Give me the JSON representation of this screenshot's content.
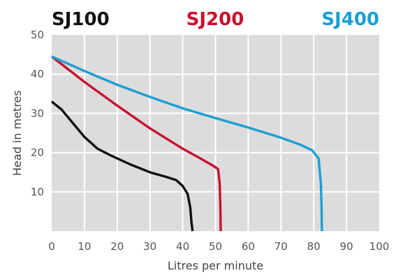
{
  "chart_data": {
    "type": "line",
    "title": "",
    "xlabel": "Litres per minute",
    "ylabel": "Head in metres",
    "xlim": [
      0,
      100
    ],
    "ylim": [
      0,
      50
    ],
    "xticks": [
      "0",
      "10",
      "20",
      "30",
      "40",
      "50",
      "60",
      "70",
      "80",
      "90",
      "100"
    ],
    "yticks": [
      "10",
      "20",
      "30",
      "40",
      "50"
    ],
    "grid": true,
    "legend_position": "top",
    "background": "#dcdcdc",
    "grid_color": "#ffffff",
    "series": [
      {
        "name": "SJ100",
        "color": "#111111",
        "points": [
          [
            0,
            33
          ],
          [
            3,
            31
          ],
          [
            6,
            28
          ],
          [
            10,
            24
          ],
          [
            14,
            21
          ],
          [
            18,
            19.3
          ],
          [
            24,
            17
          ],
          [
            30,
            15
          ],
          [
            35,
            13.8
          ],
          [
            38,
            13
          ],
          [
            40,
            11.5
          ],
          [
            41.5,
            9.5
          ],
          [
            42.3,
            6
          ],
          [
            42.7,
            2
          ],
          [
            43,
            0
          ]
        ]
      },
      {
        "name": "SJ200",
        "color": "#c8102e",
        "points": [
          [
            0,
            44.5
          ],
          [
            10,
            38
          ],
          [
            20,
            32
          ],
          [
            30,
            26.2
          ],
          [
            40,
            21
          ],
          [
            45,
            18.7
          ],
          [
            49,
            16.8
          ],
          [
            50.8,
            15.8
          ],
          [
            51.3,
            12
          ],
          [
            51.5,
            6
          ],
          [
            51.6,
            0
          ]
        ]
      },
      {
        "name": "SJ400",
        "color": "#1a9fd4",
        "points": [
          [
            0,
            44.5
          ],
          [
            10,
            40.8
          ],
          [
            20,
            37.3
          ],
          [
            30,
            34.2
          ],
          [
            40,
            31.3
          ],
          [
            50,
            28.8
          ],
          [
            60,
            26.4
          ],
          [
            70,
            23.8
          ],
          [
            76,
            22
          ],
          [
            79.5,
            20.6
          ],
          [
            81.5,
            18.5
          ],
          [
            82.2,
            12
          ],
          [
            82.4,
            5
          ],
          [
            82.5,
            0
          ]
        ]
      }
    ]
  }
}
